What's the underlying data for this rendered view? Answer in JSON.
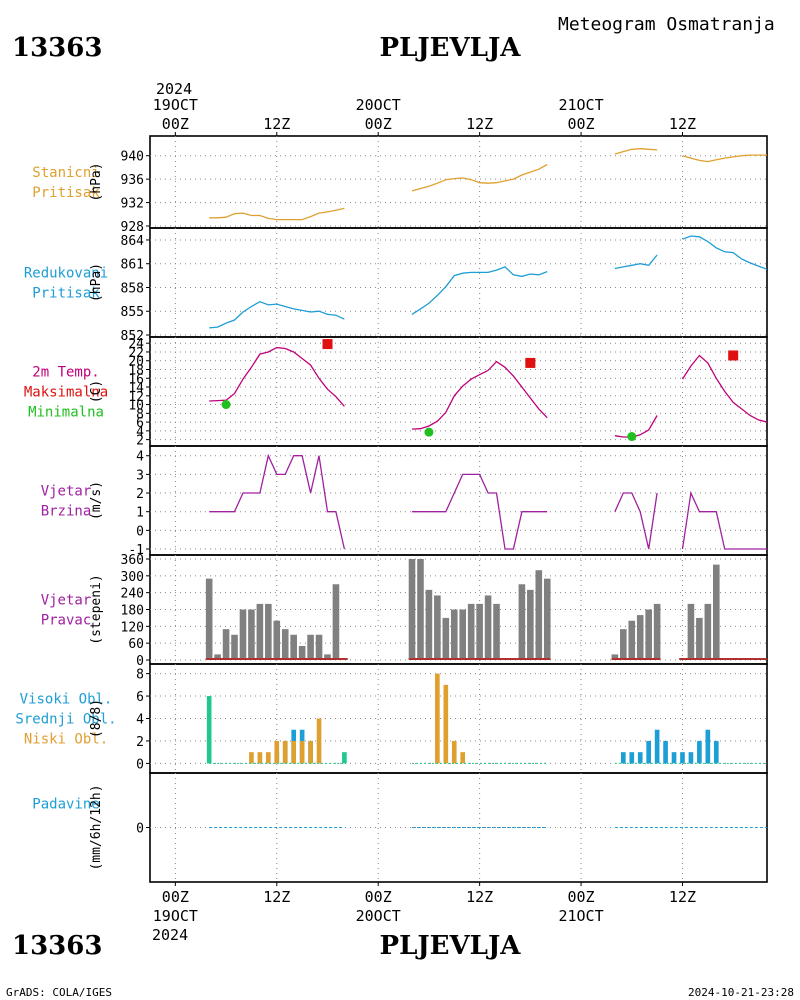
{
  "header": {
    "station_id": "13363",
    "station_name": "PLJEVLJA",
    "product": "Meteogram Osmatranja",
    "year": "2024"
  },
  "footer": {
    "left": "GrADS: COLA/IGES",
    "right": "2024-10-21-23:28"
  },
  "time_axis": {
    "top_rows": [
      [
        "19OCT",
        "00Z"
      ],
      [
        "",
        "12Z"
      ],
      [
        "20OCT",
        "00Z"
      ],
      [
        "",
        "12Z"
      ],
      [
        "21OCT",
        "00Z"
      ],
      [
        "",
        "12Z"
      ]
    ],
    "bottom_rows": [
      [
        "00Z",
        "19OCT"
      ],
      [
        "12Z",
        ""
      ],
      [
        "00Z",
        "20OCT"
      ],
      [
        "12Z",
        ""
      ],
      [
        "00Z",
        "21OCT"
      ],
      [
        "12Z",
        ""
      ]
    ],
    "tick_hours": [
      0,
      12,
      24,
      36,
      48,
      60
    ],
    "range_hours": [
      -3,
      70
    ]
  },
  "panels": [
    {
      "key": "p1",
      "labels": [
        {
          "text": "Stanicni",
          "color": "#e0a030"
        },
        {
          "text": "Pritisak",
          "color": "#e0a030"
        }
      ],
      "unit": "(hPa)"
    },
    {
      "key": "p2",
      "labels": [
        {
          "text": "Redukovani",
          "color": "#1e9ed6"
        },
        {
          "text": "Pritisak",
          "color": "#1e9ed6"
        }
      ],
      "unit": "(hPa)"
    },
    {
      "key": "p3",
      "labels": [
        {
          "text": "2m Temp.",
          "color": "#c0007a"
        },
        {
          "text": "Maksimalna",
          "color": "#e01010"
        },
        {
          "text": "Minimalna",
          "color": "#20c020"
        }
      ],
      "unit": "(C)"
    },
    {
      "key": "p4",
      "labels": [
        {
          "text": "Vjetar",
          "color": "#a020a0"
        },
        {
          "text": "Brzina",
          "color": "#a020a0"
        }
      ],
      "unit": "(m/s)"
    },
    {
      "key": "p5",
      "labels": [
        {
          "text": "Vjetar",
          "color": "#a020a0"
        },
        {
          "text": "Pravac",
          "color": "#a020a0"
        }
      ],
      "unit": "(stepeni)"
    },
    {
      "key": "p6",
      "labels": [
        {
          "text": "Visoki Obl.",
          "color": "#1e9ed6"
        },
        {
          "text": "Srednji Obl.",
          "color": "#1e9ed6"
        },
        {
          "text": "Niski Obl.",
          "color": "#e0a030"
        }
      ],
      "unit": "(8/8)"
    },
    {
      "key": "p7",
      "labels": [
        {
          "text": "Padavine",
          "color": "#1e9ed6"
        }
      ],
      "unit": "(mm/6h/12h)"
    }
  ],
  "colors": {
    "station_pressure": "#e0a030",
    "reduced_pressure": "#1e9ed6",
    "temperature": "#c0007a",
    "t_max": "#e01010",
    "t_min": "#20c020",
    "wind_speed": "#a020a0",
    "wind_dir": "#808080",
    "wind_dir_base": "#b03030",
    "cloud_high": "#20c890",
    "cloud_mid": "#1e9ed6",
    "cloud_low": "#e0a030",
    "precip": "#1e9ed6"
  },
  "chart_data": [
    {
      "type": "line",
      "key": "station_pressure",
      "ylabel": "(hPa)",
      "ylim": [
        928,
        942
      ],
      "yticks": [
        928,
        932,
        936,
        940
      ],
      "series": [
        {
          "x": [
            4,
            5,
            6,
            7,
            8,
            9,
            10,
            11,
            12,
            13,
            14,
            15,
            16,
            17,
            18,
            19,
            20
          ],
          "y": [
            929.4,
            929.4,
            929.5,
            930.1,
            930.2,
            929.8,
            929.8,
            929.3,
            929.1,
            929.1,
            929.1,
            929.1,
            929.6,
            930.2,
            930.4,
            930.7,
            931.0
          ]
        },
        {
          "x": [
            28,
            29,
            30,
            31,
            32,
            33,
            34,
            35,
            36,
            37,
            38,
            39,
            40,
            41,
            42,
            43,
            44
          ],
          "y": [
            934.0,
            934.4,
            934.8,
            935.3,
            935.9,
            936.1,
            936.2,
            935.9,
            935.4,
            935.3,
            935.4,
            935.7,
            936.0,
            936.7,
            937.2,
            937.7,
            938.5
          ]
        },
        {
          "x": [
            52,
            53,
            54,
            55,
            56,
            57
          ],
          "y": [
            940.3,
            940.7,
            941.1,
            941.2,
            941.1,
            941.0
          ]
        },
        {
          "x": [
            60,
            61,
            62,
            63,
            64,
            65,
            66,
            67,
            68,
            69,
            70
          ],
          "y": [
            940.0,
            939.6,
            939.2,
            939.0,
            939.3,
            939.6,
            939.8,
            940.0,
            940.1,
            940.1,
            940.1
          ]
        }
      ]
    },
    {
      "type": "line",
      "key": "reduced_pressure",
      "ylabel": "(hPa)",
      "ylim": [
        852,
        864.5
      ],
      "yticks": [
        852,
        855,
        858,
        861,
        864
      ],
      "series": [
        {
          "x": [
            4,
            5,
            6,
            7,
            8,
            9,
            10,
            11,
            12,
            13,
            14,
            15,
            16,
            17,
            18,
            19,
            20
          ],
          "y": [
            852.9,
            853.0,
            853.5,
            853.9,
            854.9,
            855.6,
            856.2,
            855.8,
            855.9,
            855.6,
            855.3,
            855.1,
            854.9,
            855.0,
            854.6,
            854.5,
            854.0
          ]
        },
        {
          "x": [
            28,
            29,
            30,
            31,
            32,
            33,
            34,
            35,
            36,
            37,
            38,
            39,
            40,
            41,
            42,
            43,
            44
          ],
          "y": [
            854.6,
            855.3,
            856.0,
            857.0,
            858.1,
            859.5,
            859.8,
            859.9,
            859.9,
            859.9,
            860.2,
            860.6,
            859.6,
            859.4,
            859.7,
            859.6,
            860.0
          ]
        },
        {
          "x": [
            52,
            53,
            54,
            55,
            56,
            57
          ],
          "y": [
            860.4,
            860.6,
            860.8,
            861.0,
            860.8,
            862.1
          ]
        },
        {
          "x": [
            60,
            61,
            62,
            63,
            64,
            65,
            66,
            67,
            68,
            69,
            70
          ],
          "y": [
            864.1,
            864.5,
            864.4,
            863.8,
            863.0,
            862.5,
            862.4,
            861.6,
            861.1,
            860.7,
            860.3
          ]
        }
      ]
    },
    {
      "type": "line",
      "key": "temperature",
      "ylabel": "(C)",
      "ylim": [
        1,
        24.5
      ],
      "yticks": [
        2,
        4,
        6,
        8,
        10,
        12,
        14,
        16,
        18,
        20,
        22,
        24
      ],
      "series": [
        {
          "x": [
            4,
            5,
            6,
            7,
            8,
            9,
            10,
            11,
            12,
            13,
            14,
            15,
            16,
            17,
            18,
            19,
            20
          ],
          "y": [
            10.8,
            10.9,
            11.0,
            12.5,
            15.8,
            18.5,
            21.5,
            22.0,
            23.0,
            22.8,
            22.0,
            20.5,
            19.0,
            16.0,
            13.5,
            11.8,
            9.6
          ]
        },
        {
          "x": [
            28,
            29,
            30,
            31,
            32,
            33,
            34,
            35,
            36,
            37,
            38,
            39,
            40,
            41,
            42,
            43,
            44
          ],
          "y": [
            4.4,
            4.5,
            5.1,
            6.2,
            8.2,
            12.0,
            14.2,
            15.8,
            16.8,
            17.8,
            19.8,
            18.5,
            16.5,
            14.0,
            11.5,
            9.0,
            7.0
          ]
        },
        {
          "x": [
            52,
            53,
            54,
            55,
            56,
            57
          ],
          "y": [
            2.9,
            2.6,
            2.6,
            3.1,
            4.2,
            7.5
          ]
        },
        {
          "x": [
            60,
            61,
            62,
            63,
            64,
            65,
            66,
            67,
            68,
            69,
            70
          ],
          "y": [
            15.8,
            18.8,
            21.2,
            19.5,
            16.0,
            13.0,
            10.5,
            9.0,
            7.5,
            6.5,
            6.0
          ]
        }
      ],
      "t_max": {
        "x": [
          18,
          42,
          66
        ],
        "y": [
          23.8,
          19.5,
          21.2
        ]
      },
      "t_min": {
        "x": [
          6,
          30,
          54
        ],
        "y": [
          10.0,
          3.7,
          2.7
        ]
      }
    },
    {
      "type": "line",
      "key": "wind_speed",
      "ylabel": "(m/s)",
      "ylim": [
        -1,
        4.2
      ],
      "yticks": [
        -1,
        0,
        1,
        2,
        3,
        4
      ],
      "series": [
        {
          "x": [
            4,
            5,
            6,
            7,
            8,
            9,
            10,
            11,
            12,
            13,
            14,
            15,
            16,
            17,
            18,
            19,
            20
          ],
          "y": [
            1,
            1,
            1,
            1,
            2,
            2,
            2,
            4,
            3,
            3,
            4,
            4,
            2,
            4,
            1,
            1,
            -1
          ]
        },
        {
          "x": [
            28,
            29,
            30,
            31,
            32,
            33,
            34,
            35,
            36,
            37,
            38,
            39,
            40,
            41,
            42,
            43,
            44
          ],
          "y": [
            1,
            1,
            1,
            1,
            1,
            2,
            3,
            3,
            3,
            2,
            2,
            -1,
            -1,
            1,
            1,
            1,
            1
          ]
        },
        {
          "x": [
            52,
            53,
            54,
            55,
            56,
            57
          ],
          "y": [
            1,
            2,
            2,
            1,
            -1,
            2
          ]
        },
        {
          "x": [
            60,
            61,
            62,
            63,
            64,
            65,
            66,
            67,
            68,
            69,
            70
          ],
          "y": [
            -1,
            2,
            1,
            1,
            1,
            -1,
            -1,
            -1,
            -1,
            -1,
            -1
          ]
        }
      ]
    },
    {
      "type": "bar",
      "key": "wind_dir",
      "ylabel": "(stepeni)",
      "ylim": [
        0,
        360
      ],
      "yticks": [
        0,
        60,
        120,
        180,
        240,
        300,
        360
      ],
      "series": [
        {
          "x": [
            4,
            5,
            6,
            7,
            8,
            9,
            10,
            11,
            12,
            13,
            14,
            15,
            16,
            17,
            18,
            19,
            20
          ],
          "y": [
            290,
            20,
            110,
            90,
            180,
            180,
            200,
            200,
            140,
            110,
            90,
            50,
            90,
            90,
            20,
            270,
            0
          ]
        },
        {
          "x": [
            28,
            29,
            30,
            31,
            32,
            33,
            34,
            35,
            36,
            37,
            38,
            39,
            40,
            41,
            42,
            43,
            44
          ],
          "y": [
            360,
            360,
            250,
            230,
            150,
            180,
            180,
            200,
            200,
            230,
            200,
            0,
            0,
            270,
            250,
            320,
            290
          ]
        },
        {
          "x": [
            52,
            53,
            54,
            55,
            56,
            57
          ],
          "y": [
            20,
            110,
            140,
            160,
            180,
            200
          ]
        },
        {
          "x": [
            60,
            61,
            62,
            63,
            64,
            65,
            66,
            67,
            68,
            69,
            70
          ],
          "y": [
            0,
            200,
            150,
            200,
            340,
            0,
            0,
            0,
            0,
            0,
            0
          ]
        }
      ]
    },
    {
      "type": "bar",
      "key": "clouds",
      "ylabel": "(8/8)",
      "ylim": [
        -0.5,
        8.5
      ],
      "yticks": [
        0,
        2,
        4,
        6,
        8
      ],
      "high": {
        "x": [
          4,
          20
        ],
        "y": [
          6,
          1
        ]
      },
      "mid": {
        "x": [
          12,
          13,
          14,
          15,
          16,
          53,
          54,
          55,
          56,
          57,
          58,
          59,
          60,
          61,
          62,
          63,
          64
        ],
        "y": [
          1,
          2,
          3,
          3,
          2,
          1,
          1,
          1,
          2,
          3,
          2,
          1,
          1,
          1,
          2,
          3,
          2
        ]
      },
      "low": {
        "x": [
          9,
          10,
          11,
          12,
          13,
          14,
          15,
          16,
          17,
          31,
          32,
          33,
          34
        ],
        "y": [
          1,
          1,
          1,
          2,
          2,
          2,
          2,
          2,
          4,
          8,
          7,
          2,
          1
        ]
      }
    },
    {
      "type": "line",
      "key": "precip",
      "ylabel": "(mm/6h/12h)",
      "ylim": [
        -5,
        5
      ],
      "yticks": [
        0
      ],
      "segments": [
        [
          4,
          20
        ],
        [
          28,
          44
        ],
        [
          52,
          70
        ]
      ],
      "y": 0
    }
  ]
}
